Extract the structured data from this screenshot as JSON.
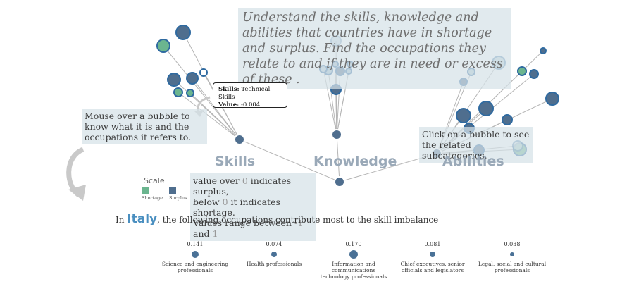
{
  "intro_text": "Understand the skills, knowledge and abilities that countries have in shortage and surplus. Find the occupations they relate to and if they are in need or excess of these .",
  "hint_mouseover": "Mouse over a bubble to know what it is and the occupations it refers to.",
  "hint_click": "Click on a bubble to see the related subcategories.",
  "categories": {
    "skills": "Skills",
    "knowledge": "Knowledge",
    "abilities": "Abilities"
  },
  "tooltip": {
    "key1": "Skills:",
    "val1": "Technical Skills",
    "key2": "Value:",
    "val2": "-0.004"
  },
  "value_note": {
    "line1_a": "value over ",
    "line1_b": "0",
    "line1_c": " indicates surplus,",
    "line2_a": "below ",
    "line2_b": "0",
    "line2_c": " it indicates shortage.",
    "line3_a": "Values range between ",
    "line3_b": "-1",
    "line3_c": " and ",
    "line3_d": "1"
  },
  "scale": {
    "title": "Scale",
    "shortage": "Shortage",
    "surplus": "Surplus"
  },
  "colors": {
    "shortage": "#6bb58f",
    "surplus": "#4f6e8e",
    "node": "#4f6e8e",
    "accent": "#4a8fc0",
    "line": "#b5b5b5"
  },
  "sentence": {
    "pre": "In ",
    "country": "Italy",
    "post": ", the following occupations contribute most to the skill imbalance"
  },
  "occupations": [
    {
      "value": "0.141",
      "label": "Science and engineering professionals",
      "magnitude": 0.141
    },
    {
      "value": "0.074",
      "label": "Health professionals",
      "magnitude": 0.074
    },
    {
      "value": "0.170",
      "label": "Information and communications technology professionals",
      "magnitude": 0.17
    },
    {
      "value": "0.081",
      "label": "Chief executives, senior officials and legislators",
      "magnitude": 0.081
    },
    {
      "value": "0.038",
      "label": "Legal, social and cultural professionals",
      "magnitude": 0.038
    }
  ]
}
